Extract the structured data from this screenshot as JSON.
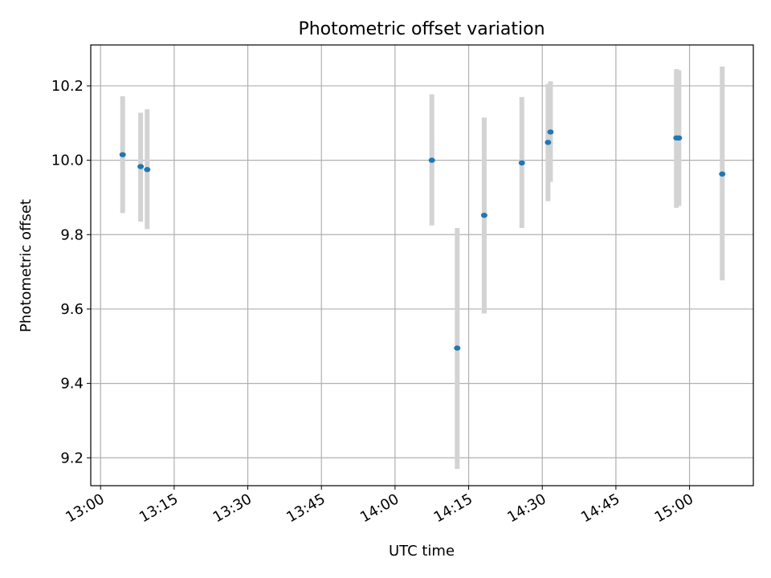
{
  "chart_data": {
    "type": "scatter",
    "title": "Photometric offset variation",
    "xlabel": "UTC time",
    "ylabel": "Photometric offset",
    "xlim": [
      "12:58",
      "15:13"
    ],
    "ylim": [
      9.125,
      10.31
    ],
    "x_ticks": [
      "13:00",
      "13:15",
      "13:30",
      "13:45",
      "14:00",
      "14:15",
      "14:30",
      "14:45",
      "15:00"
    ],
    "y_ticks": [
      9.2,
      9.4,
      9.6,
      9.8,
      10.0,
      10.2
    ],
    "y_tick_labels": [
      "9.2",
      "9.4",
      "9.6",
      "9.8",
      "10.0",
      "10.2"
    ],
    "grid": true,
    "point_color": "#1f77b4",
    "errorbar_color": "#d3d3d3",
    "points": [
      {
        "time": "13:04:30",
        "value": 10.015,
        "low": 9.858,
        "high": 10.172
      },
      {
        "time": "13:08:10",
        "value": 9.983,
        "low": 9.835,
        "high": 10.128
      },
      {
        "time": "13:09:30",
        "value": 9.975,
        "low": 9.815,
        "high": 10.137
      },
      {
        "time": "14:07:30",
        "value": 10.0,
        "low": 9.825,
        "high": 10.177
      },
      {
        "time": "14:12:40",
        "value": 9.495,
        "low": 9.17,
        "high": 9.818
      },
      {
        "time": "14:18:10",
        "value": 9.852,
        "low": 9.588,
        "high": 10.115
      },
      {
        "time": "14:25:50",
        "value": 9.993,
        "low": 9.818,
        "high": 10.17
      },
      {
        "time": "14:31:10",
        "value": 10.048,
        "low": 9.89,
        "high": 10.205
      },
      {
        "time": "14:31:40",
        "value": 10.076,
        "low": 9.942,
        "high": 10.212
      },
      {
        "time": "14:57:20",
        "value": 10.06,
        "low": 9.872,
        "high": 10.245
      },
      {
        "time": "14:57:50",
        "value": 10.06,
        "low": 9.877,
        "high": 10.242
      },
      {
        "time": "15:06:40",
        "value": 9.963,
        "low": 9.677,
        "high": 10.252
      }
    ]
  }
}
